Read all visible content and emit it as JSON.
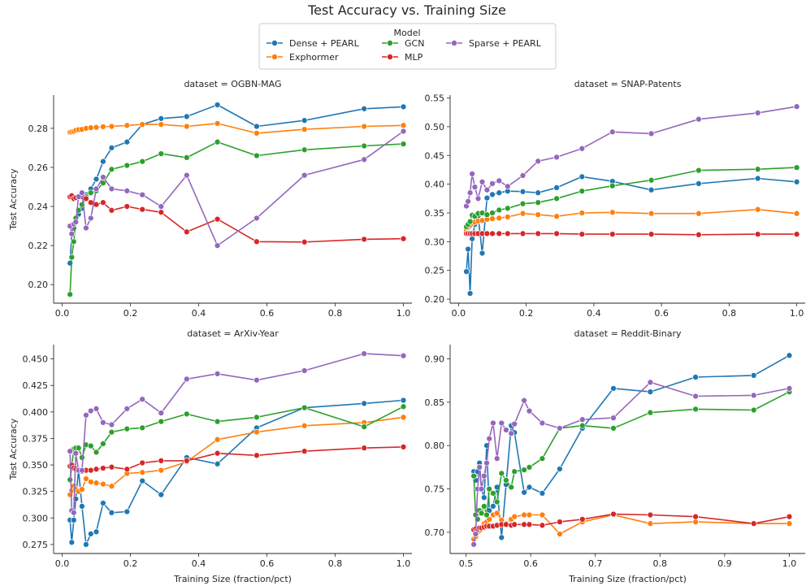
{
  "figure": {
    "title": "Test Accuracy vs. Training Size"
  },
  "legend": {
    "title": "Model",
    "entries": [
      {
        "name": "Dense + PEARL",
        "color": "#1f77b4"
      },
      {
        "name": "Exphormer",
        "color": "#ff7f0e"
      },
      {
        "name": "GCN",
        "color": "#2ca02c"
      },
      {
        "name": "MLP",
        "color": "#d62728"
      },
      {
        "name": "Sparse + PEARL",
        "color": "#9467bd"
      }
    ]
  },
  "chart_data": [
    {
      "type": "line",
      "title": "dataset = OGBN-MAG",
      "xlabel": "",
      "ylabel": "Test Accuracy",
      "xlim": [
        -0.025,
        1.025
      ],
      "ylim": [
        0.1905,
        0.297
      ],
      "xticks": [
        0.0,
        0.2,
        0.4,
        0.6,
        0.8,
        1.0
      ],
      "yticks": [
        0.2,
        0.22,
        0.24,
        0.26,
        0.28
      ],
      "xtick_decimals": 1,
      "ytick_decimals": 2,
      "x": [
        0.023,
        0.028,
        0.034,
        0.04,
        0.048,
        0.058,
        0.07,
        0.084,
        0.1,
        0.12,
        0.145,
        0.19,
        0.235,
        0.29,
        0.365,
        0.455,
        0.57,
        0.71,
        0.885,
        1.0
      ],
      "series": [
        {
          "name": "Dense + PEARL",
          "color": "#1f77b4",
          "values": [
            0.211,
            0.226,
            0.229,
            0.233,
            0.236,
            0.239,
            0.246,
            0.249,
            0.254,
            0.263,
            0.27,
            0.273,
            0.282,
            0.285,
            0.286,
            0.292,
            0.281,
            0.284,
            0.29,
            0.291
          ]
        },
        {
          "name": "Exphormer",
          "color": "#ff7f0e",
          "values": [
            0.278,
            0.2782,
            0.2785,
            0.279,
            0.2793,
            0.2795,
            0.28,
            0.2803,
            0.2805,
            0.2808,
            0.281,
            0.2815,
            0.282,
            0.282,
            0.281,
            0.2825,
            0.2775,
            0.2795,
            0.281,
            0.2815
          ]
        },
        {
          "name": "GCN",
          "color": "#2ca02c",
          "values": [
            0.195,
            0.214,
            0.222,
            0.234,
            0.238,
            0.241,
            0.245,
            0.247,
            0.248,
            0.252,
            0.259,
            0.261,
            0.263,
            0.267,
            0.265,
            0.273,
            0.266,
            0.269,
            0.271,
            0.272
          ]
        },
        {
          "name": "MLP",
          "color": "#d62728",
          "values": [
            0.245,
            0.2455,
            0.244,
            0.2445,
            0.245,
            0.245,
            0.244,
            0.242,
            0.241,
            0.242,
            0.238,
            0.24,
            0.2385,
            0.237,
            0.227,
            0.2335,
            0.222,
            0.2218,
            0.2232,
            0.2235
          ]
        },
        {
          "name": "Sparse + PEARL",
          "color": "#9467bd",
          "values": [
            0.23,
            0.226,
            0.231,
            0.232,
            0.245,
            0.247,
            0.229,
            0.234,
            0.249,
            0.255,
            0.249,
            0.248,
            0.246,
            0.24,
            0.256,
            0.22,
            0.234,
            0.256,
            0.264,
            0.2785
          ]
        }
      ]
    },
    {
      "type": "line",
      "title": "dataset = SNAP-Patents",
      "xlabel": "",
      "ylabel": "",
      "xlim": [
        -0.025,
        1.025
      ],
      "ylim": [
        0.193,
        0.555
      ],
      "xticks": [
        0.0,
        0.2,
        0.4,
        0.6,
        0.8,
        1.0
      ],
      "yticks": [
        0.2,
        0.25,
        0.3,
        0.35,
        0.4,
        0.45,
        0.5,
        0.55
      ],
      "xtick_decimals": 1,
      "ytick_decimals": 2,
      "x": [
        0.023,
        0.028,
        0.034,
        0.04,
        0.048,
        0.058,
        0.07,
        0.084,
        0.1,
        0.12,
        0.145,
        0.19,
        0.235,
        0.29,
        0.365,
        0.455,
        0.57,
        0.71,
        0.885,
        1.0
      ],
      "series": [
        {
          "name": "Dense + PEARL",
          "color": "#1f77b4",
          "values": [
            0.248,
            0.287,
            0.21,
            0.305,
            0.33,
            0.345,
            0.28,
            0.376,
            0.382,
            0.385,
            0.388,
            0.387,
            0.385,
            0.394,
            0.413,
            0.405,
            0.39,
            0.401,
            0.41,
            0.404
          ]
        },
        {
          "name": "Exphormer",
          "color": "#ff7f0e",
          "values": [
            0.32,
            0.325,
            0.328,
            0.332,
            0.334,
            0.336,
            0.337,
            0.339,
            0.34,
            0.341,
            0.343,
            0.349,
            0.347,
            0.344,
            0.35,
            0.351,
            0.349,
            0.349,
            0.356,
            0.349
          ]
        },
        {
          "name": "GCN",
          "color": "#2ca02c",
          "values": [
            0.326,
            0.33,
            0.335,
            0.346,
            0.344,
            0.349,
            0.35,
            0.347,
            0.35,
            0.355,
            0.358,
            0.366,
            0.368,
            0.375,
            0.388,
            0.397,
            0.407,
            0.424,
            0.426,
            0.429
          ]
        },
        {
          "name": "MLP",
          "color": "#d62728",
          "values": [
            0.314,
            0.314,
            0.314,
            0.314,
            0.314,
            0.314,
            0.314,
            0.314,
            0.314,
            0.314,
            0.314,
            0.314,
            0.314,
            0.314,
            0.313,
            0.313,
            0.313,
            0.312,
            0.313,
            0.313
          ]
        },
        {
          "name": "Sparse + PEARL",
          "color": "#9467bd",
          "values": [
            0.362,
            0.37,
            0.385,
            0.418,
            0.395,
            0.375,
            0.404,
            0.39,
            0.401,
            0.406,
            0.396,
            0.415,
            0.44,
            0.447,
            0.462,
            0.491,
            0.488,
            0.513,
            0.524,
            0.535
          ]
        }
      ]
    },
    {
      "type": "line",
      "title": "dataset = ArXiv-Year",
      "xlabel": "Training Size (fraction/pct)",
      "ylabel": "Test Accuracy",
      "xlim": [
        -0.025,
        1.025
      ],
      "ylim": [
        0.2665,
        0.4635
      ],
      "xticks": [
        0.0,
        0.2,
        0.4,
        0.6,
        0.8,
        1.0
      ],
      "yticks": [
        0.275,
        0.3,
        0.325,
        0.35,
        0.375,
        0.4,
        0.425,
        0.45
      ],
      "xtick_decimals": 1,
      "ytick_decimals": 3,
      "x": [
        0.023,
        0.028,
        0.034,
        0.04,
        0.048,
        0.058,
        0.07,
        0.084,
        0.1,
        0.12,
        0.145,
        0.19,
        0.235,
        0.29,
        0.365,
        0.455,
        0.57,
        0.71,
        0.885,
        1.0
      ],
      "series": [
        {
          "name": "Dense + PEARL",
          "color": "#1f77b4",
          "values": [
            0.298,
            0.277,
            0.298,
            0.318,
            0.345,
            0.311,
            0.275,
            0.285,
            0.287,
            0.314,
            0.305,
            0.306,
            0.335,
            0.322,
            0.357,
            0.351,
            0.385,
            0.404,
            0.408,
            0.411
          ]
        },
        {
          "name": "Exphormer",
          "color": "#ff7f0e",
          "values": [
            0.322,
            0.326,
            0.33,
            0.327,
            0.325,
            0.327,
            0.337,
            0.334,
            0.333,
            0.332,
            0.33,
            0.342,
            0.343,
            0.345,
            0.353,
            0.374,
            0.381,
            0.387,
            0.39,
            0.395
          ]
        },
        {
          "name": "GCN",
          "color": "#2ca02c",
          "values": [
            0.336,
            0.348,
            0.365,
            0.366,
            0.366,
            0.357,
            0.369,
            0.368,
            0.362,
            0.37,
            0.381,
            0.384,
            0.385,
            0.391,
            0.398,
            0.391,
            0.395,
            0.404,
            0.386,
            0.405
          ]
        },
        {
          "name": "MLP",
          "color": "#d62728",
          "values": [
            0.349,
            0.35,
            0.347,
            0.346,
            0.345,
            0.344,
            0.345,
            0.345,
            0.346,
            0.347,
            0.348,
            0.346,
            0.352,
            0.354,
            0.354,
            0.361,
            0.359,
            0.363,
            0.366,
            0.367
          ]
        },
        {
          "name": "Sparse + PEARL",
          "color": "#9467bd",
          "values": [
            0.363,
            0.307,
            0.305,
            0.361,
            0.345,
            0.345,
            0.397,
            0.401,
            0.403,
            0.39,
            0.388,
            0.403,
            0.412,
            0.399,
            0.431,
            0.436,
            0.43,
            0.439,
            0.455,
            0.453
          ]
        }
      ]
    },
    {
      "type": "line",
      "title": "dataset = Reddit-Binary",
      "xlabel": "Training Size (fraction/pct)",
      "ylabel": "",
      "xlim": [
        0.4755,
        1.0245
      ],
      "ylim": [
        0.6755,
        0.9165
      ],
      "xticks": [
        0.5,
        0.6,
        0.7,
        0.8,
        0.9,
        1.0
      ],
      "yticks": [
        0.7,
        0.75,
        0.8,
        0.85,
        0.9
      ],
      "xtick_decimals": 1,
      "ytick_decimals": 2,
      "x": [
        0.512,
        0.515,
        0.518,
        0.521,
        0.524,
        0.528,
        0.532,
        0.536,
        0.542,
        0.548,
        0.555,
        0.562,
        0.57,
        0.575,
        0.59,
        0.598,
        0.618,
        0.645,
        0.68,
        0.728,
        0.785,
        0.855,
        0.945,
        1.0
      ],
      "series": [
        {
          "name": "Dense + PEARL",
          "color": "#1f77b4",
          "values": [
            0.77,
            0.76,
            0.77,
            0.78,
            0.75,
            0.74,
            0.8,
            0.725,
            0.73,
            0.752,
            0.694,
            0.755,
            0.823,
            0.815,
            0.746,
            0.752,
            0.745,
            0.773,
            0.82,
            0.866,
            0.862,
            0.879,
            0.881,
            0.904
          ]
        },
        {
          "name": "Exphormer",
          "color": "#ff7f0e",
          "values": [
            0.692,
            0.695,
            0.7,
            0.702,
            0.705,
            0.71,
            0.712,
            0.715,
            0.72,
            0.722,
            0.714,
            0.71,
            0.715,
            0.718,
            0.72,
            0.72,
            0.72,
            0.698,
            0.712,
            0.72,
            0.71,
            0.712,
            0.71,
            0.71
          ]
        },
        {
          "name": "GCN",
          "color": "#2ca02c",
          "values": [
            0.765,
            0.72,
            0.715,
            0.725,
            0.722,
            0.73,
            0.72,
            0.75,
            0.745,
            0.735,
            0.768,
            0.76,
            0.752,
            0.77,
            0.772,
            0.775,
            0.785,
            0.82,
            0.823,
            0.82,
            0.838,
            0.842,
            0.841,
            0.862
          ]
        },
        {
          "name": "MLP",
          "color": "#d62728",
          "values": [
            0.703,
            0.704,
            0.703,
            0.705,
            0.705,
            0.706,
            0.707,
            0.707,
            0.707,
            0.708,
            0.709,
            0.709,
            0.708,
            0.709,
            0.709,
            0.709,
            0.708,
            0.712,
            0.715,
            0.721,
            0.72,
            0.718,
            0.71,
            0.718
          ]
        },
        {
          "name": "Sparse + PEARL",
          "color": "#9467bd",
          "values": [
            0.686,
            0.698,
            0.75,
            0.775,
            0.75,
            0.765,
            0.78,
            0.808,
            0.826,
            0.785,
            0.826,
            0.818,
            0.814,
            0.825,
            0.852,
            0.84,
            0.826,
            0.82,
            0.83,
            0.832,
            0.873,
            0.857,
            0.858,
            0.866
          ]
        }
      ]
    }
  ]
}
